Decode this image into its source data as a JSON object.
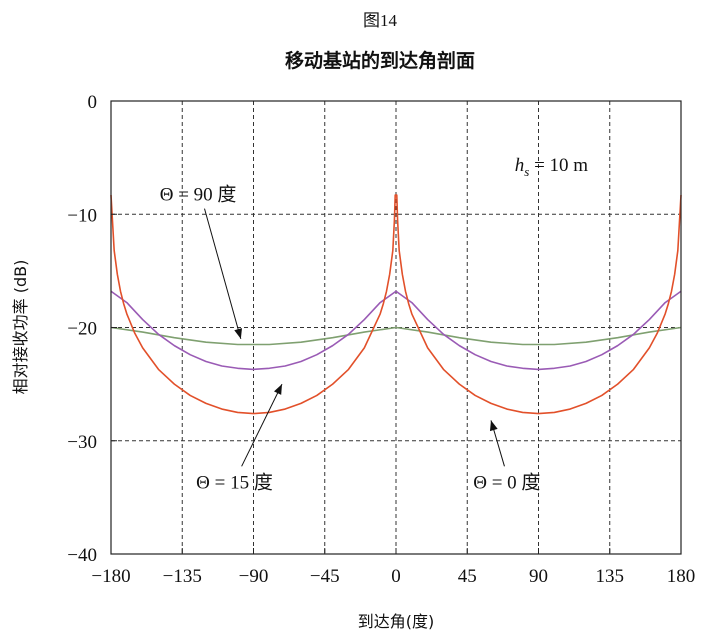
{
  "chart_data": {
    "type": "line",
    "figure_label": "图14",
    "title": "移动基站的到达角剖面",
    "xlabel": "到达角(度)",
    "ylabel": "相对接收功率 (dB)",
    "xlim": [
      -180,
      180
    ],
    "ylim": [
      -40,
      0
    ],
    "xticks": [
      -180,
      -135,
      -90,
      -45,
      0,
      45,
      90,
      135,
      180
    ],
    "yticks": [
      0,
      -10,
      -20,
      -30,
      -40
    ],
    "xtick_labels": [
      "−180",
      "−135",
      "−90",
      "−45",
      "0",
      "45",
      "90",
      "135",
      "180"
    ],
    "ytick_labels": [
      "0",
      "−10",
      "−20",
      "−30",
      "−40"
    ],
    "grid": true,
    "series": [
      {
        "name": "Θ = 0 度",
        "color": "#e2502a",
        "x": [
          -180,
          -178,
          -176,
          -174,
          -172,
          -170,
          -165,
          -160,
          -150,
          -140,
          -130,
          -120,
          -110,
          -100,
          -90,
          -80,
          -70,
          -60,
          -50,
          -40,
          -30,
          -20,
          -10,
          -8,
          -6,
          -4,
          -2,
          -1,
          -0.5,
          0,
          0.5,
          1,
          2,
          4,
          6,
          8,
          10,
          20,
          30,
          40,
          50,
          60,
          70,
          80,
          90,
          100,
          110,
          120,
          130,
          140,
          150,
          160,
          165,
          170,
          172,
          174,
          176,
          178,
          180
        ],
        "y": [
          -8.3,
          -13.2,
          -15.3,
          -16.8,
          -17.9,
          -18.8,
          -20.5,
          -21.8,
          -23.7,
          -25.0,
          -26.0,
          -26.7,
          -27.2,
          -27.5,
          -27.6,
          -27.5,
          -27.2,
          -26.7,
          -26.0,
          -25.0,
          -23.7,
          -21.8,
          -18.8,
          -17.9,
          -16.8,
          -15.3,
          -13.2,
          -10.5,
          -8.3,
          -8.3,
          -8.3,
          -10.5,
          -13.2,
          -15.3,
          -16.8,
          -17.9,
          -18.8,
          -21.8,
          -23.7,
          -25.0,
          -26.0,
          -26.7,
          -27.2,
          -27.5,
          -27.6,
          -27.5,
          -27.2,
          -26.7,
          -26.0,
          -25.0,
          -23.7,
          -21.8,
          -20.5,
          -18.8,
          -17.9,
          -16.8,
          -15.3,
          -13.2,
          -8.3
        ]
      },
      {
        "name": "Θ = 15 度",
        "color": "#9a5bb5",
        "x": [
          -180,
          -170,
          -160,
          -150,
          -140,
          -130,
          -120,
          -110,
          -100,
          -90,
          -80,
          -70,
          -60,
          -50,
          -40,
          -30,
          -20,
          -10,
          0,
          10,
          20,
          30,
          40,
          50,
          60,
          70,
          80,
          90,
          100,
          110,
          120,
          130,
          140,
          150,
          160,
          170,
          180
        ],
        "y": [
          -16.8,
          -17.8,
          -19.3,
          -20.6,
          -21.6,
          -22.4,
          -23.0,
          -23.4,
          -23.6,
          -23.7,
          -23.6,
          -23.4,
          -23.0,
          -22.4,
          -21.6,
          -20.6,
          -19.3,
          -17.8,
          -16.8,
          -17.8,
          -19.3,
          -20.6,
          -21.6,
          -22.4,
          -23.0,
          -23.4,
          -23.6,
          -23.7,
          -23.6,
          -23.4,
          -23.0,
          -22.4,
          -21.6,
          -20.6,
          -19.3,
          -17.8,
          -16.8
        ]
      },
      {
        "name": "Θ = 90 度",
        "color": "#7fa070",
        "x": [
          -180,
          -160,
          -140,
          -120,
          -100,
          -90,
          -80,
          -60,
          -40,
          -20,
          0,
          20,
          40,
          60,
          80,
          90,
          100,
          120,
          140,
          160,
          180
        ],
        "y": [
          -20.0,
          -20.4,
          -20.9,
          -21.3,
          -21.5,
          -21.5,
          -21.5,
          -21.3,
          -20.9,
          -20.4,
          -20.0,
          -20.4,
          -20.9,
          -21.3,
          -21.5,
          -21.5,
          -21.5,
          -21.3,
          -20.9,
          -20.4,
          -20.0
        ]
      }
    ],
    "annotations": [
      {
        "text_prefix": "h",
        "text_sub": "s",
        "text_suffix": " = 10 m",
        "x": 75,
        "y": -6.2
      },
      {
        "text": "Θ = 90 度",
        "x": -125,
        "y": -8.8,
        "arrow_to": [
          -98,
          -21.0
        ]
      },
      {
        "text": "Θ = 15 度",
        "x": -102,
        "y": -34.2,
        "arrow_to": [
          -72,
          -25.0
        ]
      },
      {
        "text": "Θ = 0 度",
        "x": 70,
        "y": -34.2,
        "arrow_to": [
          60,
          -28.2
        ]
      }
    ]
  }
}
